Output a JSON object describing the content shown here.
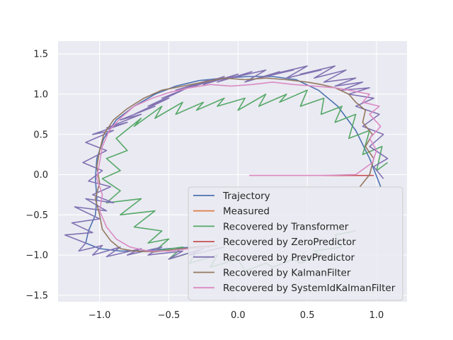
{
  "chart_data": {
    "type": "line",
    "title": "",
    "xlabel": "",
    "ylabel": "",
    "xlim": [
      -1.3,
      1.22
    ],
    "ylim": [
      -1.58,
      1.66
    ],
    "xticks": [
      -1.0,
      -0.5,
      0.0,
      0.5,
      1.0
    ],
    "xtick_labels": [
      "−1.0",
      "−0.5",
      "0.0",
      "0.5",
      "1.0"
    ],
    "yticks": [
      -1.5,
      -1.0,
      -0.5,
      0.0,
      0.5,
      1.0,
      1.5
    ],
    "ytick_labels": [
      "−1.5",
      "−1.0",
      "−0.5",
      "0.0",
      "0.5",
      "1.0",
      "1.5"
    ],
    "grid": true,
    "background": "#eaeaf2",
    "legend_position": "lower-right",
    "series": [
      {
        "name": "Trajectory",
        "color": "#4c72b0",
        "x": [
          1.03,
          0.95,
          0.85,
          0.72,
          0.58,
          0.42,
          0.25,
          0.08,
          -0.1,
          -0.28,
          -0.45,
          -0.6,
          -0.75,
          -0.88,
          -0.97,
          -1.02,
          -1.03,
          -1.02,
          -1.03,
          -1.08,
          -1.1,
          -1.0,
          -0.85,
          -0.68,
          -0.5,
          -0.32,
          -0.15
        ],
        "y": [
          -0.15,
          0.2,
          0.55,
          0.85,
          1.05,
          1.18,
          1.22,
          1.22,
          1.2,
          1.17,
          1.1,
          1.0,
          0.85,
          0.68,
          0.45,
          0.2,
          -0.05,
          -0.3,
          -0.5,
          -0.7,
          -0.85,
          -0.92,
          -0.95,
          -0.95,
          -0.92,
          -0.9,
          -0.88
        ]
      },
      {
        "name": "Measured",
        "color": "#dd8452",
        "x": [],
        "y": []
      },
      {
        "name": "Recovered by Transformer",
        "color": "#55a868",
        "x": [
          1.08,
          1.0,
          1.04,
          0.9,
          0.95,
          0.8,
          0.85,
          0.7,
          0.75,
          0.6,
          0.62,
          0.45,
          0.5,
          0.3,
          0.35,
          0.15,
          0.2,
          0.0,
          0.05,
          -0.15,
          -0.1,
          -0.3,
          -0.25,
          -0.45,
          -0.4,
          -0.6,
          -0.55,
          -0.75,
          -0.7,
          -0.88,
          -0.8,
          -0.95,
          -0.85,
          -0.98,
          -0.85,
          -0.95,
          -0.7,
          -0.85,
          -0.6,
          -0.75,
          -0.55,
          -0.65,
          -0.5,
          -0.6,
          -0.4,
          -0.5,
          -0.3,
          -0.35,
          -0.15,
          -0.2,
          0.0,
          0.05,
          0.2,
          0.25,
          0.4,
          0.45,
          0.6,
          0.55,
          0.75,
          0.7,
          0.85
        ],
        "y": [
          0.15,
          0.05,
          0.35,
          0.25,
          0.55,
          0.45,
          0.75,
          0.65,
          0.85,
          0.75,
          0.95,
          0.85,
          1.05,
          0.9,
          1.0,
          0.85,
          1.0,
          0.8,
          0.95,
          0.85,
          0.95,
          0.8,
          0.9,
          0.75,
          0.9,
          0.7,
          0.85,
          0.6,
          0.7,
          0.45,
          0.3,
          0.2,
          0.05,
          -0.05,
          -0.2,
          -0.35,
          -0.3,
          -0.5,
          -0.45,
          -0.65,
          -0.7,
          -0.85,
          -0.8,
          -0.95,
          -0.9,
          -1.05,
          -0.95,
          -1.1,
          -1.0,
          -1.15,
          -1.05,
          -1.2,
          -1.1,
          -1.15,
          -1.05,
          -1.1,
          -1.0,
          -0.95,
          -0.9,
          -0.75,
          -0.7
        ]
      },
      {
        "name": "Recovered by ZeroPredictor",
        "color": "#c44e52",
        "x": [
          0.08,
          0.2,
          0.35,
          0.5,
          0.65,
          0.8,
          0.92,
          0.98
        ],
        "y": [
          -0.01,
          -0.01,
          -0.01,
          -0.01,
          -0.01,
          -0.01,
          -0.01,
          -0.01
        ]
      },
      {
        "name": "Recovered by PrevPredictor",
        "color": "#8172b2",
        "x": [
          1.05,
          0.98,
          1.08,
          0.95,
          1.05,
          0.9,
          1.02,
          0.85,
          0.98,
          0.8,
          0.95,
          0.75,
          0.9,
          0.7,
          0.85,
          0.62,
          0.78,
          0.55,
          0.7,
          0.45,
          0.6,
          0.35,
          0.5,
          0.25,
          0.4,
          0.15,
          0.3,
          0.05,
          0.2,
          -0.05,
          0.1,
          -0.15,
          0.0,
          -0.25,
          -0.1,
          -0.35,
          -0.2,
          -0.45,
          -0.3,
          -0.55,
          -0.4,
          -0.65,
          -0.5,
          -0.75,
          -0.6,
          -0.85,
          -0.7,
          -0.95,
          -0.8,
          -1.05,
          -0.9,
          -1.1,
          -0.95,
          -1.12,
          -0.98,
          -1.08,
          -0.92,
          -1.05,
          -0.9,
          -1.1,
          -0.95,
          -1.18,
          -1.0,
          -1.2,
          -1.05,
          -1.25,
          -1.1,
          -1.15,
          -0.98,
          -1.05,
          -0.85,
          -0.95,
          -0.7,
          -0.8,
          -0.55,
          -0.65,
          -0.4,
          -0.5,
          -0.25,
          -0.35,
          -0.1
        ],
        "y": [
          -0.05,
          0.1,
          0.2,
          0.35,
          0.5,
          0.6,
          0.75,
          0.85,
          0.95,
          1.0,
          1.08,
          1.05,
          1.15,
          1.1,
          1.2,
          1.15,
          1.3,
          1.2,
          1.35,
          1.25,
          1.3,
          1.2,
          1.35,
          1.25,
          1.3,
          1.2,
          1.28,
          1.15,
          1.3,
          1.2,
          1.28,
          1.15,
          1.25,
          1.12,
          1.22,
          1.08,
          1.18,
          1.05,
          1.12,
          0.95,
          1.05,
          0.85,
          0.95,
          0.75,
          0.85,
          0.68,
          0.75,
          0.58,
          0.65,
          0.5,
          0.55,
          0.4,
          0.3,
          0.15,
          0.05,
          -0.08,
          -0.15,
          -0.25,
          -0.35,
          -0.3,
          -0.45,
          -0.4,
          -0.55,
          -0.6,
          -0.72,
          -0.75,
          -0.85,
          -0.95,
          -0.88,
          -1.0,
          -0.9,
          -1.02,
          -0.92,
          -1.0,
          -0.9,
          -1.0,
          -0.95,
          -1.05,
          -0.92,
          -1.0,
          -0.9
        ]
      },
      {
        "name": "Recovered by KalmanFilter",
        "color": "#937860",
        "x": [
          0.88,
          0.95,
          0.98,
          0.92,
          0.97,
          0.9,
          0.92,
          0.85,
          0.8,
          0.7,
          0.6,
          0.5,
          0.35,
          0.2,
          0.05,
          -0.1,
          -0.25,
          -0.4,
          -0.55,
          -0.68,
          -0.8,
          -0.9,
          -0.97,
          -1.0,
          -1.02,
          -1.0,
          -1.03,
          -1.0,
          -0.98,
          -0.92,
          -0.85,
          -0.75,
          -0.6,
          -0.45,
          -0.3,
          -0.15
        ],
        "y": [
          -0.15,
          0.0,
          0.2,
          0.35,
          0.5,
          0.65,
          0.8,
          0.9,
          1.0,
          1.08,
          1.12,
          1.15,
          1.18,
          1.2,
          1.18,
          1.2,
          1.15,
          1.1,
          1.05,
          0.95,
          0.82,
          0.68,
          0.5,
          0.3,
          0.1,
          -0.1,
          -0.3,
          -0.5,
          -0.68,
          -0.82,
          -0.92,
          -0.95,
          -0.96,
          -0.93,
          -0.9,
          -0.88
        ]
      },
      {
        "name": "Recovered by SystemIdKalmanFilter",
        "color": "#da8bc3",
        "x": [
          0.08,
          0.3,
          0.6,
          0.85,
          0.97,
          1.0,
          0.95,
          1.03,
          0.95,
          1.02,
          0.9,
          0.95,
          0.8,
          0.7,
          0.55,
          0.4,
          0.25,
          0.1,
          -0.05,
          -0.2,
          -0.35,
          -0.5,
          -0.62,
          -0.75,
          -0.85,
          -0.93,
          -0.98,
          -1.0,
          -1.02,
          -0.98,
          -1.0,
          -0.95,
          -0.88,
          -0.78,
          -0.65,
          -0.5,
          -0.35,
          -0.2
        ],
        "y": [
          -0.01,
          -0.01,
          -0.01,
          0.0,
          0.15,
          0.3,
          0.45,
          0.6,
          0.75,
          0.85,
          0.9,
          1.0,
          1.05,
          1.08,
          1.1,
          1.12,
          1.15,
          1.12,
          1.1,
          1.12,
          1.08,
          1.02,
          0.95,
          0.85,
          0.7,
          0.55,
          0.35,
          0.15,
          -0.05,
          -0.25,
          -0.45,
          -0.65,
          -0.8,
          -0.9,
          -0.95,
          -0.95,
          -0.92,
          -0.9
        ]
      }
    ]
  }
}
